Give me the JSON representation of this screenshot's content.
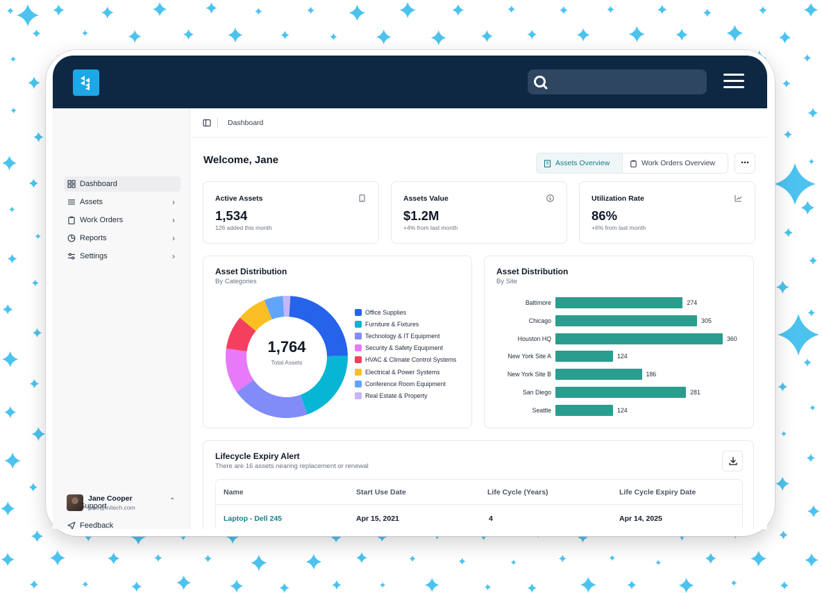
{
  "app": {
    "breadcrumb": "Dashboard",
    "welcome": "Welcome, Jane",
    "brand_color": "#1ca7e6",
    "topbar_color": "#0e2742",
    "accent_color": "#2a9d8f"
  },
  "sidebar": {
    "items": [
      {
        "label": "Dashboard",
        "icon": "grid-icon",
        "active": true,
        "has_chevron": false
      },
      {
        "label": "Assets",
        "icon": "list-icon",
        "active": false,
        "has_chevron": true
      },
      {
        "label": "Work Orders",
        "icon": "clipboard-icon",
        "active": false,
        "has_chevron": true
      },
      {
        "label": "Reports",
        "icon": "pie-chart-icon",
        "active": false,
        "has_chevron": true
      },
      {
        "label": "Settings",
        "icon": "sliders-icon",
        "active": false,
        "has_chevron": true
      }
    ],
    "footer": [
      {
        "label": "Support",
        "icon": "lifebuoy-icon"
      },
      {
        "label": "Feedback",
        "icon": "send-icon"
      }
    ],
    "user": {
      "name": "Jane Cooper",
      "email": "jane@initech.com"
    }
  },
  "tabs": {
    "assets_overview": "Assets Overview",
    "work_orders_overview": "Work Orders Overview",
    "more": "⋯"
  },
  "stats": [
    {
      "title": "Active Assets",
      "value": "1,534",
      "sub": "126 added this month",
      "icon": "tablet-icon"
    },
    {
      "title": "Assets Value",
      "value": "$1.2M",
      "sub": "+4% from last month",
      "icon": "dollar-icon"
    },
    {
      "title": "Utilization Rate",
      "value": "86%",
      "sub": "+6% from last month",
      "icon": "line-chart-icon"
    }
  ],
  "donut_card": {
    "title": "Asset Distribution",
    "subtitle": "By Categories",
    "center_value": "1,764",
    "center_label": "Total Assets"
  },
  "bar_card": {
    "title": "Asset Distribution",
    "subtitle": "By Site"
  },
  "chart_data": [
    {
      "type": "pie",
      "title": "Asset Distribution",
      "subtitle": "By Categories",
      "categories": [
        "Office Supplies",
        "Furniture & Fixtures",
        "Technology & IT Equipment",
        "Security & Safety Equipment",
        "HVAC & Climate Control Systems",
        "Electrical & Power Systems",
        "Conference Room Equipment",
        "Real Estate & Property"
      ],
      "values": [
        24,
        20,
        21,
        12,
        9,
        8,
        5,
        2
      ],
      "colors": [
        "#2563eb",
        "#06b6d4",
        "#818cf8",
        "#e879f9",
        "#f43f5e",
        "#fbbf24",
        "#60a5fa",
        "#c4b5fd"
      ],
      "legend": "right"
    },
    {
      "type": "bar",
      "orientation": "horizontal",
      "title": "Asset Distribution",
      "subtitle": "By Site",
      "categories": [
        "Baltimore",
        "Chicago",
        "Houston HQ",
        "New York Site A",
        "New York Site B",
        "San Diego",
        "Seattle"
      ],
      "values": [
        274,
        305,
        360,
        124,
        186,
        281,
        124
      ],
      "color": "#2a9d8f",
      "xlim": [
        0,
        360
      ],
      "grid": false
    }
  ],
  "lifecycle": {
    "title": "Lifecycle Expiry Alert",
    "subtitle": "There are 16 assets nearing replacement or renewal",
    "columns": [
      "Name",
      "Start Use Date",
      "Life Cycle (Years)",
      "Life Cycle Expiry Date"
    ],
    "rows": [
      [
        "Laptop - Dell 245",
        "Apr 15, 2021",
        "4",
        "Apr 14, 2025"
      ]
    ]
  }
}
